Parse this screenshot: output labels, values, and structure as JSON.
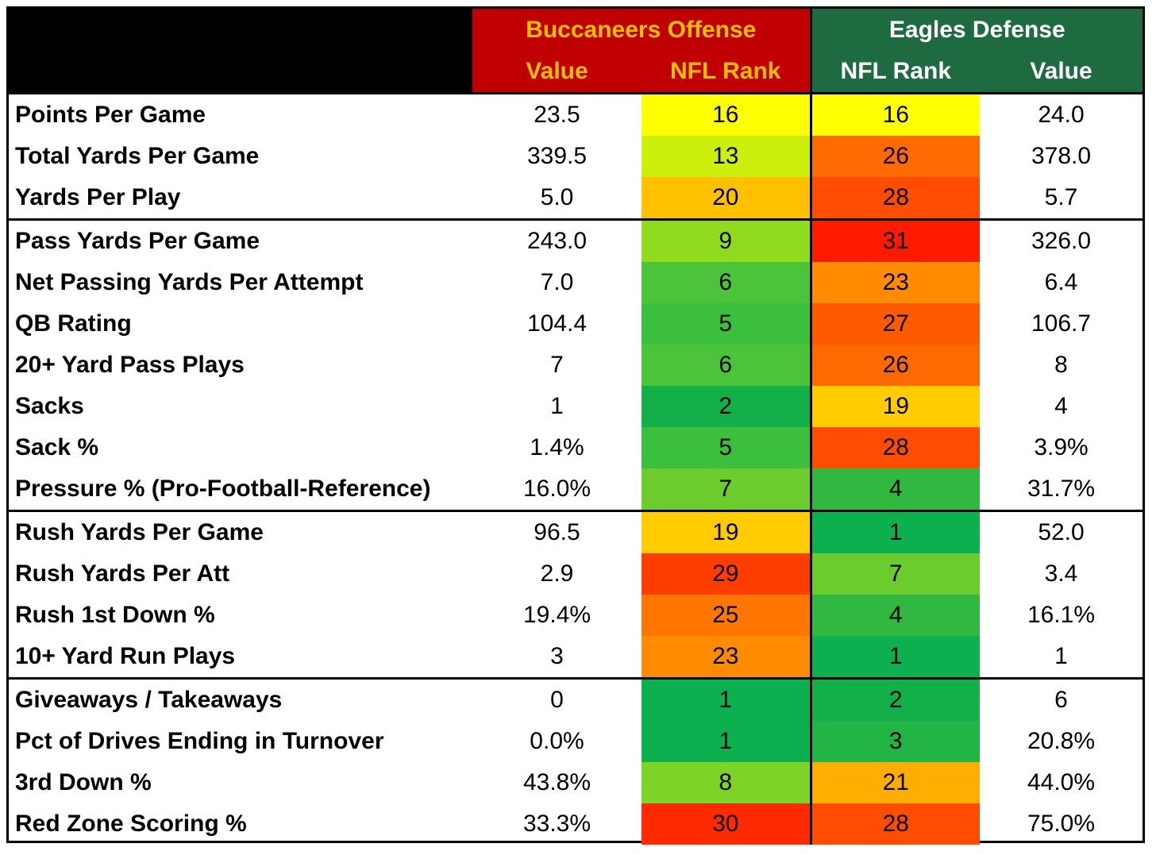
{
  "header": {
    "offense_title": "Buccaneers Offense",
    "defense_title": "Eagles Defense",
    "col_value": "Value",
    "col_rank": "NFL Rank"
  },
  "colors": {
    "offense_header_bg": "#c00000",
    "offense_header_text": "#ffc000",
    "defense_header_bg": "#1e6b42",
    "defense_header_text": "#ffffff"
  },
  "groups": [
    {
      "rows": [
        {
          "label": "Points Per Game",
          "off_value": "23.5",
          "off_rank": "16",
          "off_color": "#ffff00",
          "def_rank": "16",
          "def_color": "#ffff00",
          "def_value": "24.0"
        },
        {
          "label": "Total Yards Per Game",
          "off_value": "339.5",
          "off_rank": "13",
          "off_color": "#ccf00c",
          "def_rank": "26",
          "def_color": "#ff6a00",
          "def_value": "378.0"
        },
        {
          "label": "Yards Per Play",
          "off_value": "5.0",
          "off_rank": "20",
          "off_color": "#ffc000",
          "def_rank": "28",
          "def_color": "#ff4d00",
          "def_value": "5.7"
        }
      ]
    },
    {
      "rows": [
        {
          "label": "Pass Yards Per Game",
          "off_value": "243.0",
          "off_rank": "9",
          "off_color": "#8fdb20",
          "def_rank": "31",
          "def_color": "#ff1a00",
          "def_value": "326.0"
        },
        {
          "label": "Net Passing Yards Per Attempt",
          "off_value": "7.0",
          "off_rank": "6",
          "off_color": "#4cc43a",
          "def_rank": "23",
          "def_color": "#ff8c00",
          "def_value": "6.4"
        },
        {
          "label": "QB Rating",
          "off_value": "104.4",
          "off_rank": "5",
          "off_color": "#3cbf3c",
          "def_rank": "27",
          "def_color": "#ff5a00",
          "def_value": "106.7"
        },
        {
          "label": "20+ Yard Pass Plays",
          "off_value": "7",
          "off_rank": "6",
          "off_color": "#4cc43a",
          "def_rank": "26",
          "def_color": "#ff6a00",
          "def_value": "8"
        },
        {
          "label": "Sacks",
          "off_value": "1",
          "off_rank": "2",
          "off_color": "#13b04a",
          "def_rank": "19",
          "def_color": "#ffcc00",
          "def_value": "4"
        },
        {
          "label": "Sack %",
          "off_value": "1.4%",
          "off_rank": "5",
          "off_color": "#3cbf3c",
          "def_rank": "28",
          "def_color": "#ff4d00",
          "def_value": "3.9%"
        },
        {
          "label": "Pressure % (Pro-Football-Reference)",
          "off_value": "16.0%",
          "off_rank": "7",
          "off_color": "#6ccc2e",
          "def_rank": "4",
          "def_color": "#30b840",
          "def_value": "31.7%"
        }
      ]
    },
    {
      "rows": [
        {
          "label": "Rush Yards Per Game",
          "off_value": "96.5",
          "off_rank": "19",
          "off_color": "#ffcc00",
          "def_rank": "1",
          "def_color": "#0db04f",
          "def_value": "52.0"
        },
        {
          "label": "Rush Yards Per Att",
          "off_value": "2.9",
          "off_rank": "29",
          "off_color": "#ff3d00",
          "def_rank": "7",
          "def_color": "#6ccc2e",
          "def_value": "3.4"
        },
        {
          "label": "Rush 1st Down %",
          "off_value": "19.4%",
          "off_rank": "25",
          "off_color": "#ff7700",
          "def_rank": "4",
          "def_color": "#30b840",
          "def_value": "16.1%"
        },
        {
          "label": "10+ Yard Run Plays",
          "off_value": "3",
          "off_rank": "23",
          "off_color": "#ff8c00",
          "def_rank": "1",
          "def_color": "#0db04f",
          "def_value": "1"
        }
      ]
    },
    {
      "rows": [
        {
          "label": "Giveaways / Takeaways",
          "off_value": "0",
          "off_rank": "1",
          "off_color": "#0db04f",
          "def_rank": "2",
          "def_color": "#13b04a",
          "def_value": "6"
        },
        {
          "label": "Pct of Drives Ending in Turnover",
          "off_value": "0.0%",
          "off_rank": "1",
          "off_color": "#0db04f",
          "def_rank": "3",
          "def_color": "#22b445",
          "def_value": "20.8%"
        },
        {
          "label": "3rd Down %",
          "off_value": "43.8%",
          "off_rank": "8",
          "off_color": "#7ed327",
          "def_rank": "21",
          "def_color": "#ffae00",
          "def_value": "44.0%"
        },
        {
          "label": "Red Zone Scoring %",
          "off_value": "33.3%",
          "off_rank": "30",
          "off_color": "#ff2a00",
          "def_rank": "28",
          "def_color": "#ff4d00",
          "def_value": "75.0%"
        }
      ]
    }
  ]
}
